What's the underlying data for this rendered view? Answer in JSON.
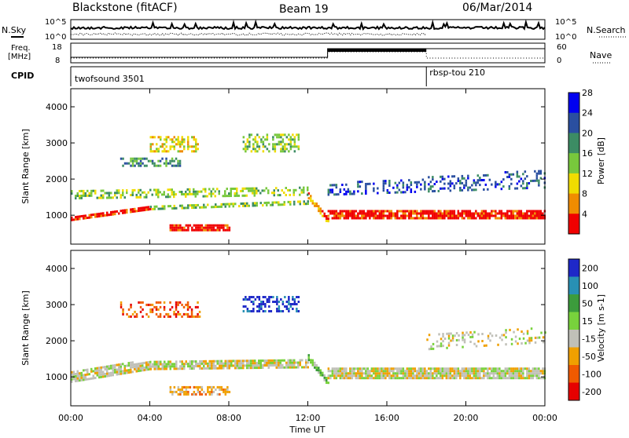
{
  "header": {
    "radar": "Blackstone (fitACF)",
    "beam": "Beam 19",
    "date": "06/Mar/2014"
  },
  "noise_panel": {
    "left_label": "N.Sky",
    "right_label": "N.Search",
    "tick_top_left": "10^5",
    "tick_bottom_left": "10^0",
    "tick_top_right": "10^5",
    "tick_bottom_right": "10^0"
  },
  "freq_panel": {
    "left_label_1": "Freq.",
    "left_label_2": "[MHz]",
    "tick_top_left": "18",
    "tick_bottom_left": "8",
    "tick_top_right": "60",
    "tick_bottom_right": "0",
    "right_label": "Nave"
  },
  "cpid_panel": {
    "label": "CPID",
    "programs": [
      {
        "name": "twofsound 3501",
        "start_hour": 0
      },
      {
        "name": "rbsp-tou 210",
        "start_hour": 18
      }
    ]
  },
  "chart_data": [
    {
      "type": "heatmap",
      "quantity": "power",
      "ylabel": "Slant Range [km]",
      "ylim": [
        200,
        4500
      ],
      "yticks": [
        "1000",
        "2000",
        "3000",
        "4000"
      ],
      "xlim": [
        0,
        24
      ],
      "colorbar": {
        "label": "Power [dB]",
        "ticks": [
          "4",
          "8",
          "12",
          "16",
          "20",
          "24",
          "28"
        ],
        "colors": [
          "#0000f0",
          "#2a4fa0",
          "#3c8c64",
          "#78c83c",
          "#f0dc00",
          "#f08c00",
          "#f00000"
        ]
      },
      "bands": [
        {
          "t0": 0.0,
          "t1": 4.0,
          "r0": 900,
          "r1": 1000,
          "r0e": 1200,
          "r1e": 1300,
          "level": 6,
          "density": 0.85
        },
        {
          "t0": 4.0,
          "t1": 12.0,
          "r0": 1200,
          "r1": 1300,
          "r0e": 1350,
          "r1e": 1450,
          "level": 3,
          "density": 0.6
        },
        {
          "t0": 12.0,
          "t1": 13.0,
          "r0": 1500,
          "r1": 1650,
          "r0e": 800,
          "r1e": 950,
          "level": 5,
          "density": 0.8
        },
        {
          "t0": 13.0,
          "t1": 24.0,
          "r0": 950,
          "r1": 1200,
          "r0e": 950,
          "r1e": 1200,
          "level": 6,
          "density": 0.85
        },
        {
          "t0": 0.0,
          "t1": 12.0,
          "r0": 1500,
          "r1": 1750,
          "r0e": 1600,
          "r1e": 1850,
          "level": 3,
          "density": 0.5
        },
        {
          "t0": 5.0,
          "t1": 8.0,
          "r0": 620,
          "r1": 800,
          "r0e": 620,
          "r1e": 800,
          "level": 6,
          "density": 0.8
        },
        {
          "t0": 2.5,
          "t1": 5.5,
          "r0": 2400,
          "r1": 2600,
          "r0e": 2400,
          "r1e": 2600,
          "level": 2,
          "density": 0.5
        },
        {
          "t0": 4.0,
          "t1": 6.5,
          "r0": 2800,
          "r1": 3200,
          "r0e": 2800,
          "r1e": 3200,
          "level": 4,
          "density": 0.5
        },
        {
          "t0": 8.7,
          "t1": 11.5,
          "r0": 2800,
          "r1": 3300,
          "r0e": 2800,
          "r1e": 3300,
          "level": 3,
          "density": 0.45
        },
        {
          "t0": 13.0,
          "t1": 24.0,
          "r0": 1600,
          "r1": 1900,
          "r0e": 1800,
          "r1e": 2300,
          "level": 1,
          "density": 0.3
        }
      ]
    },
    {
      "type": "heatmap",
      "quantity": "velocity",
      "ylabel": "Slant Range [km]",
      "ylim": [
        200,
        4500
      ],
      "yticks": [
        "1000",
        "2000",
        "3000",
        "4000"
      ],
      "xlim": [
        0,
        24
      ],
      "xticks": [
        "00:00",
        "04:00",
        "08:00",
        "12:00",
        "16:00",
        "20:00",
        "00:00"
      ],
      "xlabel": "Time UT",
      "colorbar": {
        "label": "Velocity [m s-1]",
        "ticks": [
          "200",
          "100",
          "50",
          "15",
          "-15",
          "-50",
          "-100",
          "-200"
        ],
        "colors": [
          "#1e28c8",
          "#2890b4",
          "#3c9c3c",
          "#78d23c",
          "#c0c0b8",
          "#f0a000",
          "#f05a00",
          "#e60000"
        ]
      },
      "bands": [
        {
          "t0": 0.0,
          "t1": 4.0,
          "r0": 900,
          "r1": 1200,
          "r0e": 1250,
          "r1e": 1500,
          "level": 4,
          "density": 0.85
        },
        {
          "t0": 4.0,
          "t1": 12.0,
          "r0": 1250,
          "r1": 1500,
          "r0e": 1300,
          "r1e": 1550,
          "level": 4,
          "density": 0.8
        },
        {
          "t0": 13.0,
          "t1": 24.0,
          "r0": 1000,
          "r1": 1300,
          "r0e": 1000,
          "r1e": 1300,
          "level": 4,
          "density": 0.9
        },
        {
          "t0": 12.0,
          "t1": 13.0,
          "r0": 1500,
          "r1": 1650,
          "r0e": 800,
          "r1e": 950,
          "level": 3,
          "density": 0.8
        },
        {
          "t0": 5.0,
          "t1": 8.0,
          "r0": 550,
          "r1": 750,
          "r0e": 550,
          "r1e": 750,
          "level": 5,
          "density": 0.6
        },
        {
          "t0": 8.7,
          "t1": 11.5,
          "r0": 2850,
          "r1": 3250,
          "r0e": 2850,
          "r1e": 3250,
          "level": 0,
          "density": 0.45
        },
        {
          "t0": 2.5,
          "t1": 6.5,
          "r0": 2700,
          "r1": 3100,
          "r0e": 2700,
          "r1e": 3100,
          "level": 6,
          "density": 0.4
        },
        {
          "t0": 18.0,
          "t1": 24.0,
          "r0": 1800,
          "r1": 2200,
          "r0e": 2000,
          "r1e": 2400,
          "level": 4,
          "density": 0.25
        }
      ]
    }
  ],
  "time_axis": {
    "ticks": [
      "00:00",
      "04:00",
      "08:00",
      "12:00",
      "16:00",
      "20:00",
      "00:00"
    ],
    "label": "Time UT"
  },
  "colors": {
    "plot_border": "#000000",
    "dotted_series": "#000000"
  }
}
